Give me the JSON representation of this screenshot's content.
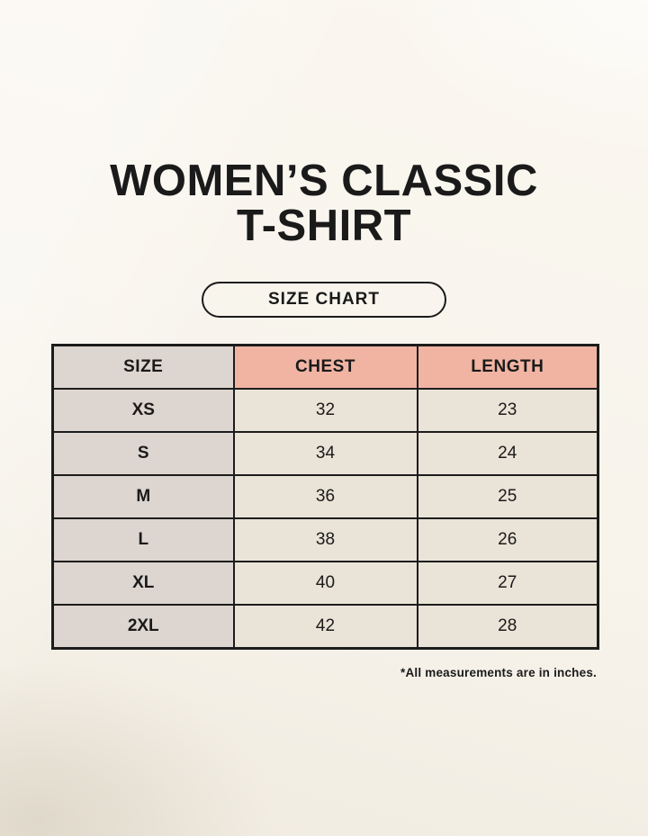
{
  "page": {
    "title_line1": "WOMEN’S CLASSIC",
    "title_line2": "T-SHIRT",
    "badge_label": "SIZE CHART",
    "footnote": "*All measurements are in inches."
  },
  "table": {
    "headers": [
      "SIZE",
      "CHEST",
      "LENGTH"
    ],
    "rows": [
      {
        "size": "XS",
        "chest": "32",
        "length": "23"
      },
      {
        "size": "S",
        "chest": "34",
        "length": "24"
      },
      {
        "size": "M",
        "chest": "36",
        "length": "25"
      },
      {
        "size": "L",
        "chest": "38",
        "length": "26"
      },
      {
        "size": "XL",
        "chest": "40",
        "length": "27"
      },
      {
        "size": "2XL",
        "chest": "42",
        "length": "28"
      }
    ]
  },
  "colors": {
    "page_background": "#f8f4ec",
    "header_accent": "#f1b4a3",
    "size_column": "#ddd5cf",
    "cell_background": "#eae3d7",
    "table_border": "#1c1c1c",
    "text": "#1a1a1a"
  },
  "chart_data": {
    "type": "table",
    "title": "SIZE CHART",
    "subtitle": "WOMEN’S CLASSIC T-SHIRT",
    "columns": [
      "SIZE",
      "CHEST",
      "LENGTH"
    ],
    "rows": [
      [
        "XS",
        32,
        23
      ],
      [
        "S",
        34,
        24
      ],
      [
        "M",
        36,
        25
      ],
      [
        "L",
        38,
        26
      ],
      [
        "XL",
        40,
        27
      ],
      [
        "2XL",
        42,
        28
      ]
    ],
    "annotations": [
      "*All measurements are in inches."
    ],
    "units": "inches"
  }
}
